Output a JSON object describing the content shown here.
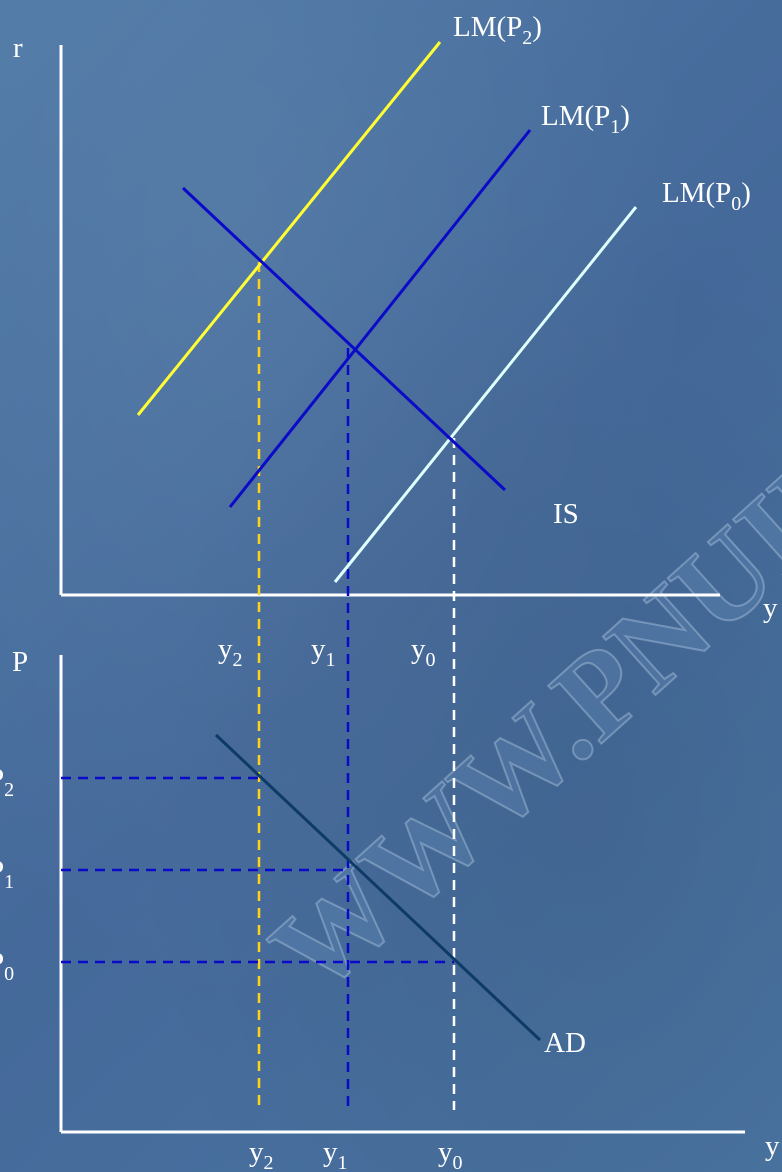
{
  "watermark": "WWW.PNUIB.COM",
  "colors": {
    "axis": "#ffffff",
    "lm_p2": "#ffff33",
    "lm_p1": "#0a0ac8",
    "lm_p0": "#e0ffff",
    "is_curve": "#0a0ac8",
    "ad_curve": "#0d3a66",
    "guide_y2": "#ffd21a",
    "guide_y1": "#0a0ac8",
    "guide_y0": "#ffffff",
    "guide_p": "#0a0ac8"
  },
  "top_panel": {
    "y_axis_label": "r",
    "x_axis_label": "y",
    "lm_p2": {
      "main": "LM(P",
      "sub": "2",
      "close": ")"
    },
    "lm_p1": {
      "main": "LM(P",
      "sub": "1",
      "close": ")"
    },
    "lm_p0": {
      "main": "LM(P",
      "sub": "0",
      "close": ")"
    },
    "is_label": "IS",
    "x_ticks": [
      {
        "main": "y",
        "sub": "2"
      },
      {
        "main": "y",
        "sub": "1"
      },
      {
        "main": "y",
        "sub": "0"
      }
    ]
  },
  "bottom_panel": {
    "y_axis_label": "P",
    "x_axis_label": "y",
    "ad_label": "AD",
    "y_ticks": [
      {
        "main": "P",
        "sub": "2"
      },
      {
        "main": "P",
        "sub": "1"
      },
      {
        "main": "P",
        "sub": "0"
      }
    ],
    "x_ticks": [
      {
        "main": "y",
        "sub": "2"
      },
      {
        "main": "y",
        "sub": "1"
      },
      {
        "main": "y",
        "sub": "0"
      }
    ]
  }
}
